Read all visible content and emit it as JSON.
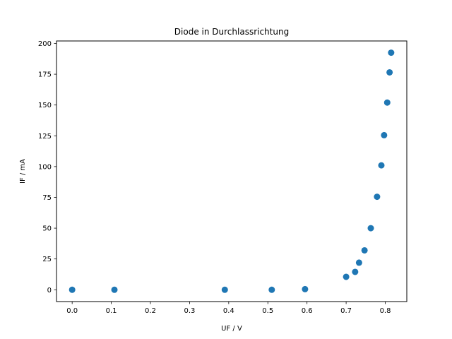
{
  "chart_data": {
    "type": "scatter",
    "title": "Diode in Durchlassrichtung",
    "xlabel": "UF / V",
    "ylabel": "IF / mA",
    "xlim": [
      -0.04,
      0.855
    ],
    "ylim": [
      -9.6,
      202
    ],
    "xticks": [
      0.0,
      0.1,
      0.2,
      0.3,
      0.4,
      0.5,
      0.6,
      0.7,
      0.8
    ],
    "xtick_labels": [
      "0.0",
      "0.1",
      "0.2",
      "0.3",
      "0.4",
      "0.5",
      "0.6",
      "0.7",
      "0.8"
    ],
    "yticks": [
      0,
      25,
      50,
      75,
      100,
      125,
      150,
      175,
      200
    ],
    "ytick_labels": [
      "0",
      "25",
      "50",
      "75",
      "100",
      "125",
      "150",
      "175",
      "200"
    ],
    "grid": false,
    "marker_color": "#1f77b4",
    "series": [
      {
        "x": [
          0.0,
          0.108,
          0.39,
          0.51,
          0.595,
          0.7,
          0.723,
          0.733,
          0.747,
          0.763,
          0.779,
          0.79,
          0.797,
          0.805,
          0.811,
          0.815
        ],
        "y": [
          0,
          0,
          0,
          0,
          0.5,
          10.5,
          14.5,
          22,
          32,
          50,
          75.5,
          101,
          125.5,
          152,
          176.5,
          192.5
        ]
      }
    ]
  }
}
